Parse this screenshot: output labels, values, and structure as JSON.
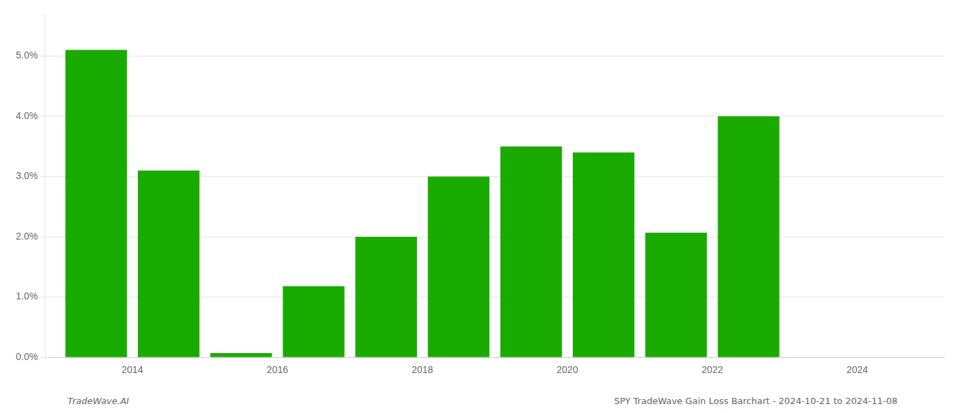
{
  "chart_data": {
    "type": "bar",
    "x": [
      2013,
      2014,
      2015,
      2016,
      2017,
      2018,
      2019,
      2020,
      2021,
      2022,
      2023
    ],
    "values": [
      0.051,
      0.031,
      0.0007,
      0.0118,
      0.02,
      0.03,
      0.035,
      0.034,
      0.0207,
      0.04,
      0.0
    ],
    "color": "#1aab00",
    "xlim": [
      2012.3,
      2024.7
    ],
    "xticks": [
      {
        "value": 2013.5,
        "label": "2014"
      },
      {
        "value": 2015.5,
        "label": "2016"
      },
      {
        "value": 2017.5,
        "label": "2018"
      },
      {
        "value": 2019.5,
        "label": "2020"
      },
      {
        "value": 2021.5,
        "label": "2022"
      },
      {
        "value": 2023.5,
        "label": "2024"
      }
    ],
    "ylim": [
      0,
      0.057
    ],
    "yticks": [
      {
        "value": 0.0,
        "label": "0.0%"
      },
      {
        "value": 0.01,
        "label": "1.0%"
      },
      {
        "value": 0.02,
        "label": "2.0%"
      },
      {
        "value": 0.03,
        "label": "3.0%"
      },
      {
        "value": 0.04,
        "label": "4.0%"
      },
      {
        "value": 0.05,
        "label": "5.0%"
      }
    ],
    "grid": true,
    "annotations": [
      "TradeWave.AI",
      "SPY TradeWave Gain Loss Barchart - 2024-10-21 to 2024-11-08"
    ]
  }
}
